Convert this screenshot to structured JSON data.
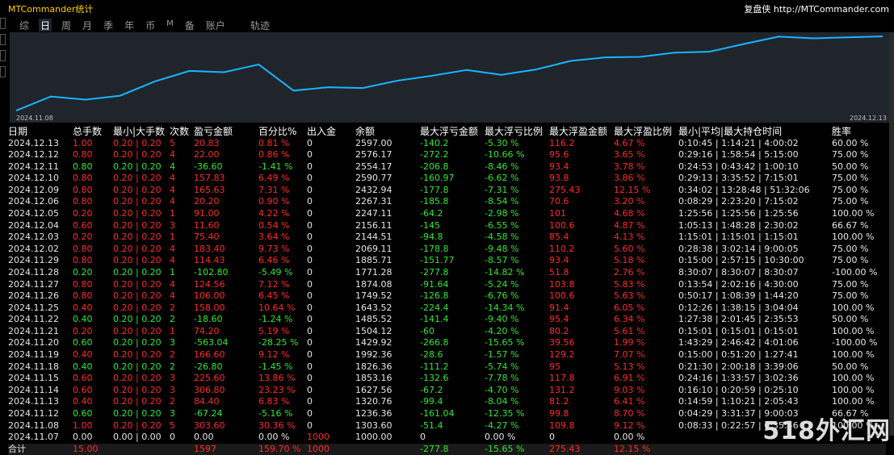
{
  "window": {
    "title": "MTCommander统计",
    "brand": "复盘侠",
    "url": "http://MTCommander.com"
  },
  "tabs": [
    "综",
    "日",
    "周",
    "月",
    "季",
    "年",
    "币",
    "M",
    "备",
    "账户"
  ],
  "active_tab": "日",
  "track_label": "轨迹",
  "chart": {
    "start_date": "2024.11.08",
    "end_date": "2024.12.13",
    "color": "#19b4ff"
  },
  "chart_data": {
    "type": "line",
    "x": [
      "2024.11.07",
      "2024.11.08",
      "2024.11.12",
      "2024.11.13",
      "2024.11.14",
      "2024.11.15",
      "2024.11.18",
      "2024.11.19",
      "2024.11.20",
      "2024.11.21",
      "2024.11.22",
      "2024.11.25",
      "2024.11.26",
      "2024.11.27",
      "2024.11.28",
      "2024.11.29",
      "2024.12.02",
      "2024.12.03",
      "2024.12.04",
      "2024.12.05",
      "2024.12.06",
      "2024.12.09",
      "2024.12.10",
      "2024.12.11",
      "2024.12.12",
      "2024.12.13"
    ],
    "values": [
      1000.0,
      1303.6,
      1236.36,
      1320.76,
      1627.56,
      1853.16,
      1826.36,
      1992.36,
      1429.92,
      1504.12,
      1485.52,
      1643.52,
      1749.52,
      1874.08,
      1771.28,
      1885.71,
      2069.11,
      2144.51,
      2156.11,
      2247.11,
      2267.31,
      2432.94,
      2590.77,
      2554.17,
      2576.17,
      2597.0
    ],
    "ylim": [
      950,
      2650
    ]
  },
  "table": {
    "headers": [
      "日期",
      "总手数",
      "最小|大手数",
      "次数",
      "盈亏金额",
      "百分比%",
      "出入金",
      "余额",
      "最大浮亏金额",
      "最大浮亏比例",
      "最大浮盈金额",
      "最大浮盈比例",
      "最小|平均|最大持仓时间",
      "胜率"
    ],
    "rows": [
      [
        "2024.12.13",
        "1.00",
        "0.20 | 0.20",
        "5",
        "20.83",
        "0.81 %",
        "0",
        "2597.00",
        "-140.2",
        "-5.30 %",
        "116.2",
        "4.67 %",
        "0:10:45 | 1:14:21 | 4:00:02",
        "60.00 %"
      ],
      [
        "2024.12.12",
        "0.80",
        "0.20 | 0.20",
        "4",
        "22.00",
        "0.86 %",
        "0",
        "2576.17",
        "-272.2",
        "-10.66 %",
        "95.6",
        "3.65 %",
        "0:29:16 | 1:58:54 | 5:15:00",
        "75.00 %"
      ],
      [
        "2024.12.11",
        "0.80",
        "0.20 | 0.20",
        "4",
        "-36.60",
        "-1.41 %",
        "0",
        "2554.17",
        "-206.8",
        "-8.46 %",
        "93.4",
        "3.78 %",
        "0:24:53 | 0:43:42 | 1:00:10",
        "50.00 %"
      ],
      [
        "2024.12.10",
        "0.80",
        "0.20 | 0.20",
        "4",
        "157.83",
        "6.49 %",
        "0",
        "2590.77",
        "-160.97",
        "-6.62 %",
        "93.8",
        "3.86 %",
        "0:29:13 | 3:35:52 | 7:15:01",
        "75.00 %"
      ],
      [
        "2024.12.09",
        "0.80",
        "0.20 | 0.20",
        "4",
        "165.63",
        "7.31 %",
        "0",
        "2432.94",
        "-177.8",
        "-7.31 %",
        "275.43",
        "12.15 %",
        "0:34:02 | 13:28:48 | 51:32:06",
        "75.00 %"
      ],
      [
        "2024.12.06",
        "0.80",
        "0.20 | 0.20",
        "4",
        "20.20",
        "0.90 %",
        "0",
        "2267.31",
        "-185.8",
        "-8.54 %",
        "70.6",
        "3.20 %",
        "0:08:29 | 2:23:20 | 7:15:02",
        "75.00 %"
      ],
      [
        "2024.12.05",
        "0.20",
        "0.20 | 0.20",
        "1",
        "91.00",
        "4.22 %",
        "0",
        "2247.11",
        "-64.2",
        "-2.98 %",
        "101",
        "4.68 %",
        "1:25:56 | 1:25:56 | 1:25:56",
        "100.00 %"
      ],
      [
        "2024.12.04",
        "0.60",
        "0.20 | 0.20",
        "3",
        "11.60",
        "0.54 %",
        "0",
        "2156.11",
        "-145",
        "-6.55 %",
        "100.6",
        "4.87 %",
        "1:05:13 | 1:48:28 | 2:30:02",
        "66.67 %"
      ],
      [
        "2024.12.03",
        "0.20",
        "0.20 | 0.20",
        "1",
        "75.40",
        "3.64 %",
        "0",
        "2144.51",
        "-94.8",
        "-4.58 %",
        "85.4",
        "4.13 %",
        "1:15:01 | 1:15:01 | 1:15:01",
        "100.00 %"
      ],
      [
        "2024.12.02",
        "0.80",
        "0.20 | 0.20",
        "4",
        "183.40",
        "9.73 %",
        "0",
        "2069.11",
        "-178.8",
        "-9.48 %",
        "110.2",
        "5.60 %",
        "0:28:38 | 3:02:14 | 9:00:05",
        "75.00 %"
      ],
      [
        "2024.11.29",
        "0.80",
        "0.20 | 0.20",
        "4",
        "114.43",
        "6.46 %",
        "0",
        "1885.71",
        "-151.77",
        "-8.57 %",
        "93.4",
        "5.18 %",
        "0:15:00 | 2:57:15 | 10:30:00",
        "75.00 %"
      ],
      [
        "2024.11.28",
        "0.20",
        "0.20 | 0.20",
        "1",
        "-102.80",
        "-5.49 %",
        "0",
        "1771.28",
        "-277.8",
        "-14.82 %",
        "51.8",
        "2.76 %",
        "8:30:07 | 8:30:07 | 8:30:07",
        "-100.00 %"
      ],
      [
        "2024.11.27",
        "0.80",
        "0.20 | 0.20",
        "4",
        "124.56",
        "7.12 %",
        "0",
        "1874.08",
        "-91.64",
        "-5.24 %",
        "103.8",
        "5.83 %",
        "0:13:54 | 2:02:16 | 4:30:00",
        "75.00 %"
      ],
      [
        "2024.11.26",
        "0.80",
        "0.20 | 0.20",
        "4",
        "106.00",
        "6.45 %",
        "0",
        "1749.52",
        "-126.8",
        "-6.76 %",
        "100.6",
        "5.63 %",
        "0:50:17 | 1:08:39 | 1:44:20",
        "75.00 %"
      ],
      [
        "2024.11.25",
        "0.40",
        "0.20 | 0.20",
        "2",
        "158.00",
        "10.64 %",
        "0",
        "1643.52",
        "-224.4",
        "-14.34 %",
        "91.4",
        "6.05 %",
        "0:12:26 | 1:38:15 | 3:04:04",
        "100.00 %"
      ],
      [
        "2024.11.22",
        "0.40",
        "0.20 | 0.20",
        "2",
        "-18.60",
        "-1.24 %",
        "0",
        "1485.52",
        "-141.4",
        "-9.40 %",
        "95.4",
        "6.34 %",
        "1:27:38 | 2:01:45 | 2:35:53",
        "50.00 %"
      ],
      [
        "2024.11.21",
        "0.20",
        "0.20 | 0.20",
        "1",
        "74.20",
        "5.19 %",
        "0",
        "1504.12",
        "-60",
        "-4.20 %",
        "80.2",
        "5.61 %",
        "0:15:01 | 0:15:01 | 0:15:01",
        "100.00 %"
      ],
      [
        "2024.11.20",
        "0.60",
        "0.20 | 0.20",
        "3",
        "-563.04",
        "-28.25 %",
        "0",
        "1429.92",
        "-266.8",
        "-15.65 %",
        "39.56",
        "1.99 %",
        "1:43:29 | 2:46:42 | 4:01:06",
        "-100.00 %"
      ],
      [
        "2024.11.19",
        "0.40",
        "0.20 | 0.20",
        "2",
        "166.60",
        "9.12 %",
        "0",
        "1992.36",
        "-28.6",
        "-1.57 %",
        "129.2",
        "7.07 %",
        "0:15:00 | 0:51:20 | 1:27:41",
        "100.00 %"
      ],
      [
        "2024.11.18",
        "0.40",
        "0.20 | 0.20",
        "2",
        "-26.80",
        "-1.45 %",
        "0",
        "1826.36",
        "-111.2",
        "-5.74 %",
        "95",
        "5.13 %",
        "0:21:30 | 2:00:18 | 3:39:06",
        "50.00 %"
      ],
      [
        "2024.11.15",
        "0.60",
        "0.20 | 0.20",
        "3",
        "225.60",
        "13.86 %",
        "0",
        "1853.16",
        "-132.6",
        "-7.78 %",
        "117.8",
        "6.91 %",
        "0:24:16 | 1:33:57 | 3:02:36",
        "100.00 %"
      ],
      [
        "2024.11.14",
        "0.60",
        "0.20 | 0.20",
        "3",
        "306.80",
        "23.23 %",
        "0",
        "1627.56",
        "-67.2",
        "-4.70 %",
        "131.2",
        "9.03 %",
        "0:16:10 | 0:20:59 | 0:25:10",
        "100.00 %"
      ],
      [
        "2024.11.13",
        "0.40",
        "0.20 | 0.20",
        "2",
        "84.40",
        "6.83 %",
        "0",
        "1320.76",
        "-99.4",
        "-8.04 %",
        "81.2",
        "6.41 %",
        "0:14:59 | 1:10:21 | 2:05:43",
        "100.00 %"
      ],
      [
        "2024.11.12",
        "0.60",
        "0.20 | 0.20",
        "3",
        "-67.24",
        "-5.16 %",
        "0",
        "1236.36",
        "-161.04",
        "-12.35 %",
        "99.8",
        "8.70 %",
        "0:04:29 | 3:31:37 | 9:00:03",
        "66.67 %"
      ],
      [
        "2024.11.08",
        "1.00",
        "0.20 | 0.20",
        "5",
        "303.60",
        "30.36 %",
        "0",
        "1303.60",
        "-51.4",
        "-4.27 %",
        "109.8",
        "9.12 %",
        "0:08:33 | 0:22:57 | 0:35:46",
        "100.00 %"
      ],
      [
        "2024.11.07",
        "0.00",
        "0.00 | 0.00",
        "0",
        "0.00",
        "0.00 %",
        "1000",
        "1000.00",
        "0",
        "0.00 %",
        "0",
        "0.00 %",
        "",
        ""
      ]
    ],
    "total": [
      "合计",
      "15.00",
      "",
      "",
      "1597",
      "159.70 %",
      "1000",
      "",
      "-277.8",
      "-15.65 %",
      "275.43",
      "12.15 %",
      "",
      ""
    ]
  },
  "watermark": "518外汇网",
  "colors": {
    "profit": "#ff2a2a",
    "loss": "#2fe82f",
    "title": "#ffd000"
  }
}
